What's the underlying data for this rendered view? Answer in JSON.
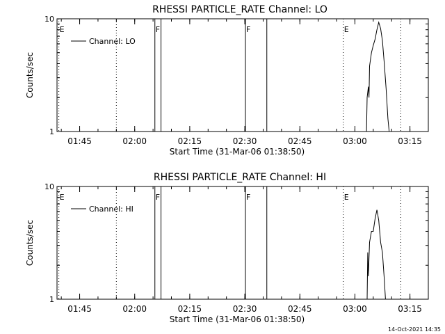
{
  "footer_stamp": "14-Oct-2021 14:35",
  "chart_data": [
    {
      "type": "line",
      "title": "RHESSI PARTICLE_RATE Channel: LO",
      "xlabel": "Start Time (31-Mar-06 01:38:50)",
      "ylabel": "Counts/sec",
      "x_range": [
        "01:38:50",
        "03:20:00"
      ],
      "ylim": [
        1,
        10
      ],
      "y_scale": "log",
      "x_ticks": [
        "01:45",
        "02:00",
        "02:15",
        "02:30",
        "02:45",
        "03:00",
        "03:15"
      ],
      "y_ticks": [
        "1",
        "10"
      ],
      "legend": {
        "position": "top-left",
        "entries": [
          "Channel: LO"
        ]
      },
      "series": [
        {
          "name": "Channel: LO",
          "points": [
            [
              "03:03:10",
              1.0
            ],
            [
              "03:03:20",
              2.0
            ],
            [
              "03:03:40",
              2.5
            ],
            [
              "03:03:50",
              2.0
            ],
            [
              "03:04:00",
              3.8
            ],
            [
              "03:04:30",
              5.0
            ],
            [
              "03:05:00",
              5.8
            ],
            [
              "03:05:30",
              6.6
            ],
            [
              "03:06:00",
              8.0
            ],
            [
              "03:06:30",
              9.3
            ],
            [
              "03:07:00",
              8.2
            ],
            [
              "03:07:30",
              6.4
            ],
            [
              "03:08:00",
              4.0
            ],
            [
              "03:08:30",
              2.4
            ],
            [
              "03:09:00",
              1.3
            ],
            [
              "03:09:20",
              1.0
            ]
          ]
        }
      ],
      "event_lines": [
        {
          "time": "01:39:20",
          "style": "dotted",
          "label": "E"
        },
        {
          "time": "01:55:00",
          "style": "dotted",
          "label": ""
        },
        {
          "time": "02:05:30",
          "style": "solid",
          "label": "F"
        },
        {
          "time": "02:07:10",
          "style": "solid",
          "label": ""
        },
        {
          "time": "02:30:10",
          "style": "solid",
          "label": "F"
        },
        {
          "time": "02:36:00",
          "style": "solid",
          "label": ""
        },
        {
          "time": "02:56:50",
          "style": "dotted",
          "label": "E"
        },
        {
          "time": "03:12:30",
          "style": "dotted",
          "label": ""
        }
      ]
    },
    {
      "type": "line",
      "title": "RHESSI PARTICLE_RATE Channel: HI",
      "xlabel": "Start Time (31-Mar-06 01:38:50)",
      "ylabel": "Counts/sec",
      "x_range": [
        "01:38:50",
        "03:20:00"
      ],
      "ylim": [
        1,
        10
      ],
      "y_scale": "log",
      "x_ticks": [
        "01:45",
        "02:00",
        "02:15",
        "02:30",
        "02:45",
        "03:00",
        "03:15"
      ],
      "y_ticks": [
        "1",
        "10"
      ],
      "legend": {
        "position": "top-left",
        "entries": [
          "Channel: HI"
        ]
      },
      "series": [
        {
          "name": "Channel: HI",
          "points": [
            [
              "03:03:20",
              1.0
            ],
            [
              "03:03:30",
              2.6
            ],
            [
              "03:03:40",
              1.6
            ],
            [
              "03:04:00",
              3.2
            ],
            [
              "03:04:30",
              4.0
            ],
            [
              "03:05:00",
              4.0
            ],
            [
              "03:05:30",
              5.2
            ],
            [
              "03:06:00",
              6.2
            ],
            [
              "03:06:30",
              5.0
            ],
            [
              "03:07:00",
              3.2
            ],
            [
              "03:07:30",
              2.6
            ],
            [
              "03:08:00",
              1.5
            ],
            [
              "03:08:20",
              1.0
            ]
          ]
        }
      ],
      "event_lines": [
        {
          "time": "01:39:20",
          "style": "dotted",
          "label": "E"
        },
        {
          "time": "01:55:00",
          "style": "dotted",
          "label": ""
        },
        {
          "time": "02:05:30",
          "style": "solid",
          "label": "F"
        },
        {
          "time": "02:07:10",
          "style": "solid",
          "label": ""
        },
        {
          "time": "02:30:10",
          "style": "solid",
          "label": "F"
        },
        {
          "time": "02:36:00",
          "style": "solid",
          "label": ""
        },
        {
          "time": "02:56:50",
          "style": "dotted",
          "label": "E"
        },
        {
          "time": "03:12:30",
          "style": "dotted",
          "label": ""
        }
      ]
    }
  ]
}
